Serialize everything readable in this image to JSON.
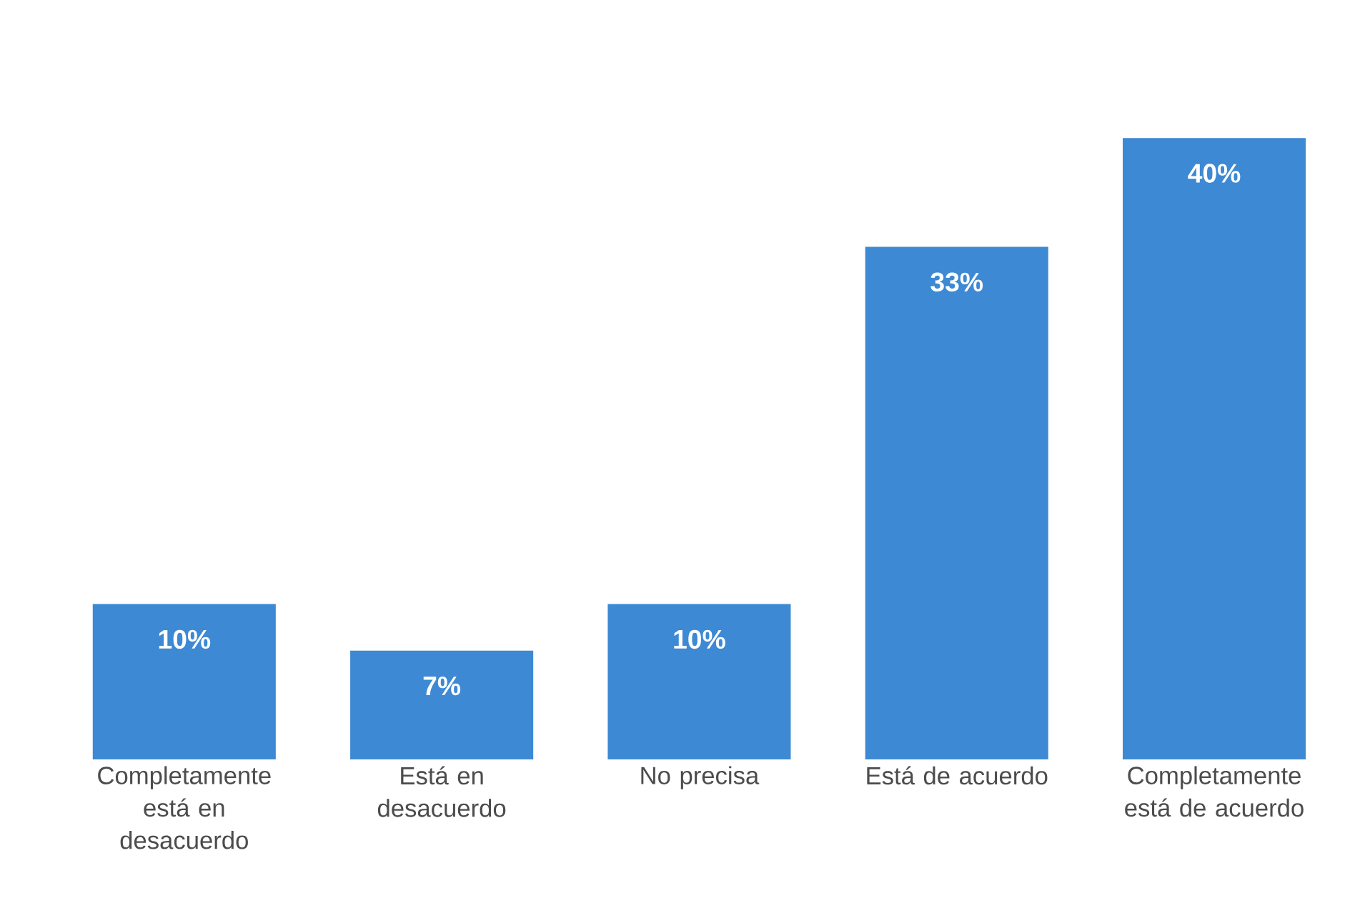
{
  "chart_data": {
    "type": "bar",
    "categories": [
      "Completamente está en desacuerdo",
      "Está en desacuerdo",
      "No precisa",
      "Está de acuerdo",
      "Completamente está de acuerdo"
    ],
    "values": [
      10,
      7,
      10,
      33,
      40
    ],
    "value_labels": [
      "10%",
      "7%",
      "10%",
      "33%",
      "40%"
    ],
    "color": "#3d89d4"
  }
}
